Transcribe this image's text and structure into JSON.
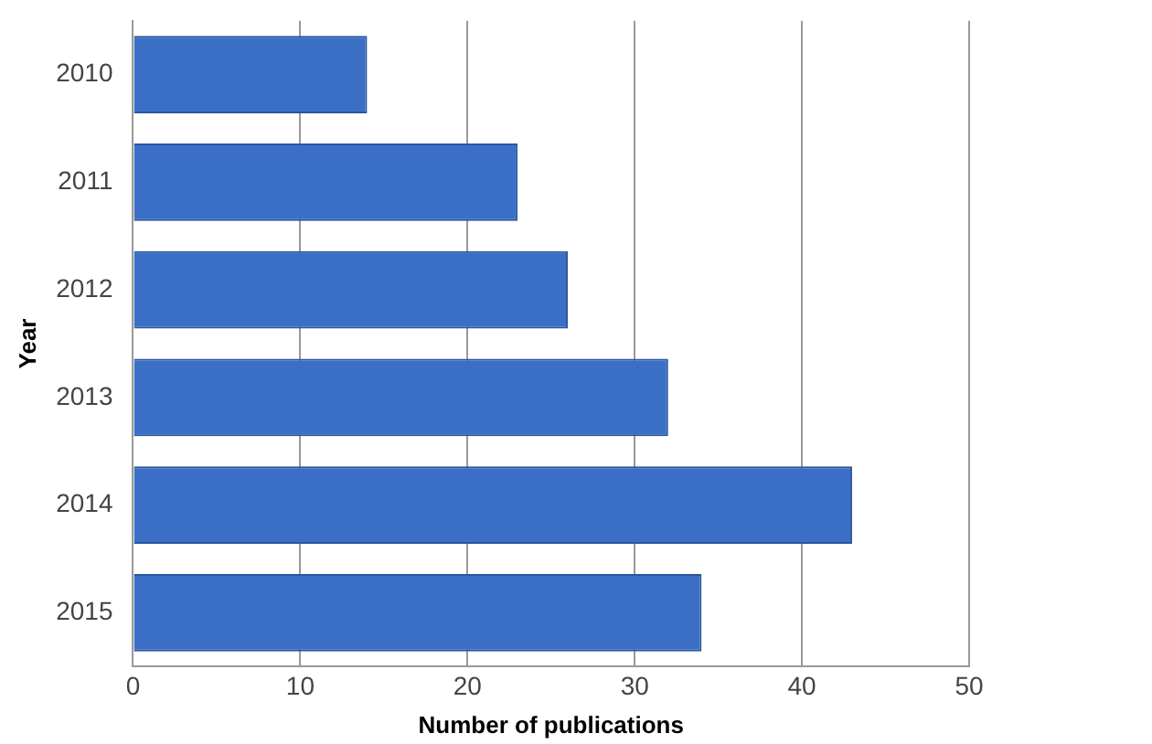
{
  "chart_data": {
    "type": "bar",
    "orientation": "horizontal",
    "xlabel": "Number of publications",
    "ylabel": "Year",
    "categories": [
      "2010",
      "2011",
      "2012",
      "2013",
      "2014",
      "2015"
    ],
    "series": [
      {
        "color": "#3b6fc6",
        "values": [
          14,
          23,
          26,
          32,
          43,
          34
        ]
      }
    ],
    "xlim": [
      0,
      50
    ],
    "xticks": [
      0,
      10,
      20,
      30,
      40,
      50
    ],
    "grid": "x",
    "legend": false
  }
}
